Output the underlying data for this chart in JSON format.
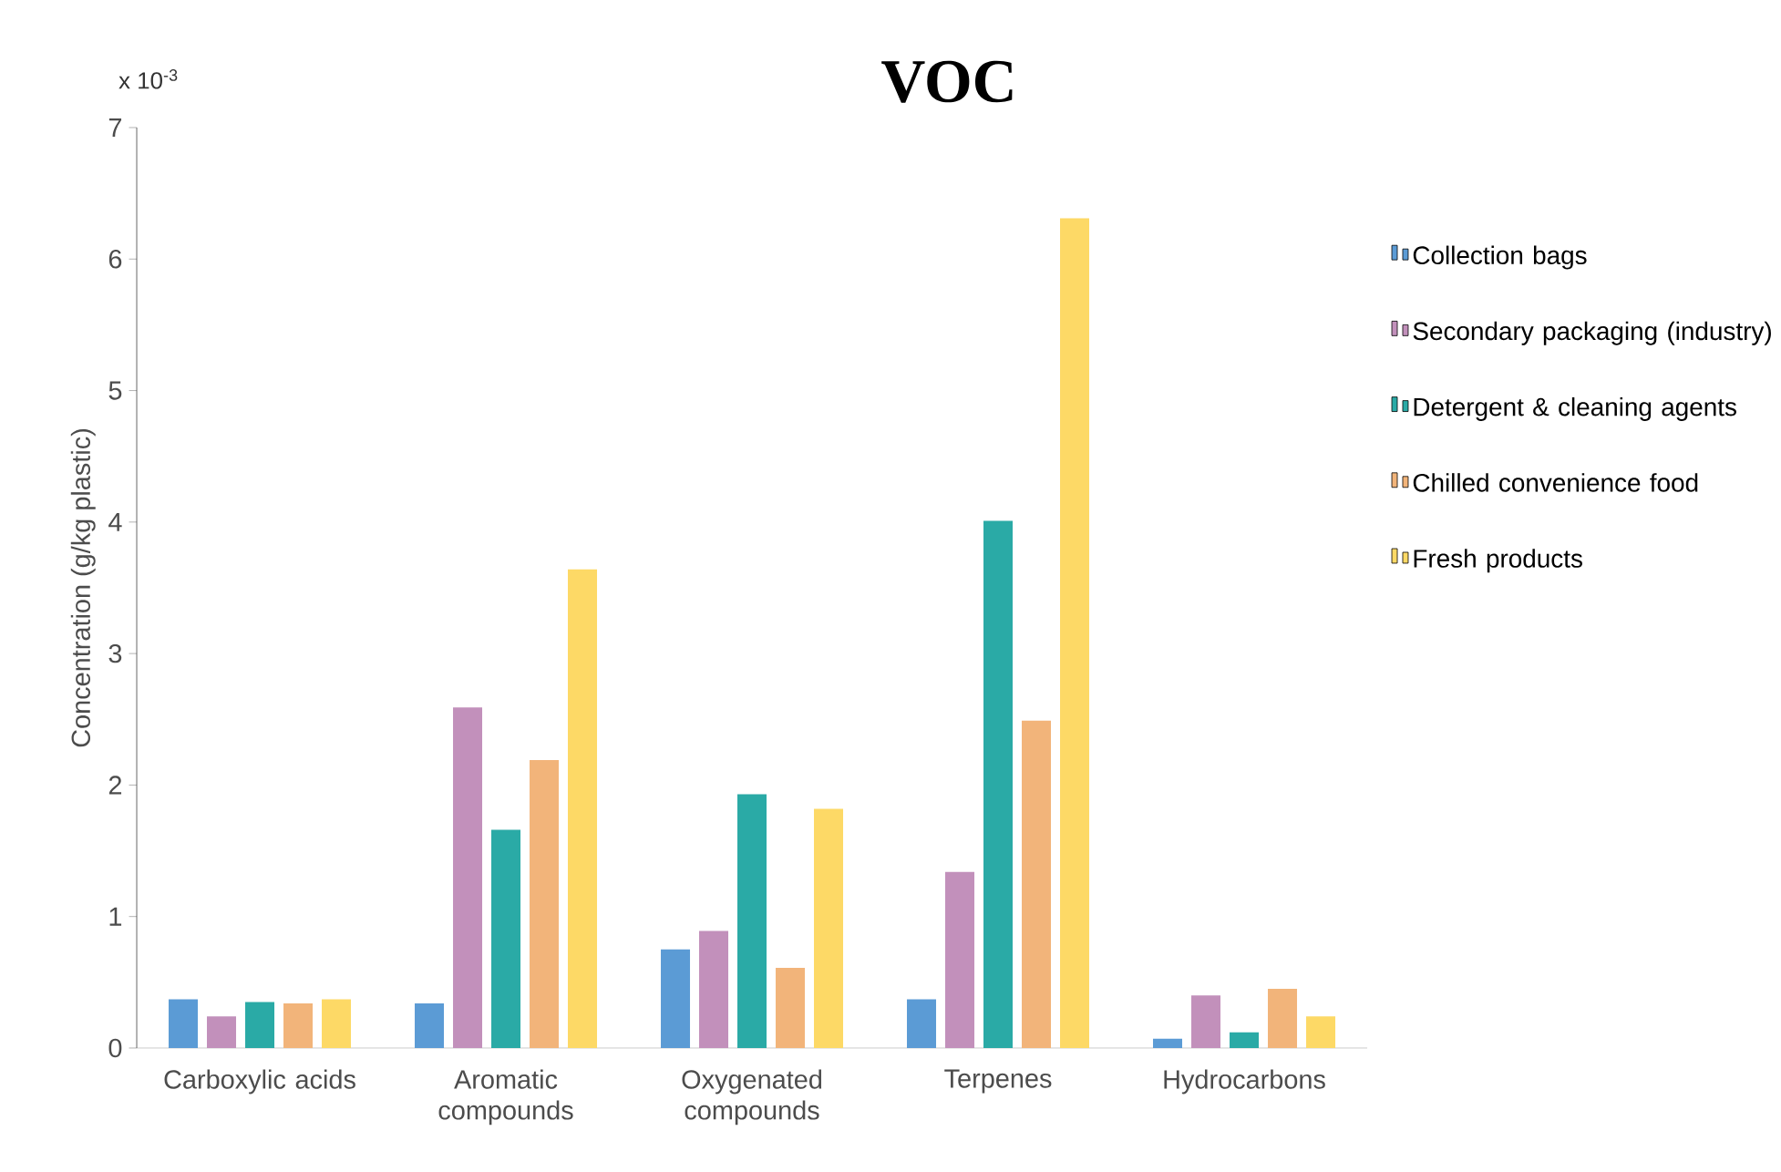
{
  "chart_data": {
    "type": "bar",
    "title": "VOC",
    "ylabel": "Concentration (g/kg plastic)",
    "annotations": [
      "x 10$^{-3}$"
    ],
    "categories": [
      "Carboxylic acids",
      "Aromatic compounds",
      "Oxygenated compounds",
      "Terpenes",
      "Hydrocarbons"
    ],
    "series": [
      {
        "name": "Collection bags",
        "color": "#5b9bd5",
        "values": [
          0.37,
          0.34,
          0.75,
          0.37,
          0.07
        ]
      },
      {
        "name": "Secondary packaging (industry)",
        "color": "#c290bb",
        "values": [
          0.24,
          2.59,
          0.89,
          1.34,
          0.4
        ]
      },
      {
        "name": "Detergent & cleaning agents",
        "color": "#2aaaa6",
        "values": [
          0.35,
          1.66,
          1.93,
          4.01,
          0.12
        ]
      },
      {
        "name": "Chilled convenience food",
        "color": "#f2b47a",
        "values": [
          0.34,
          2.19,
          0.61,
          2.49,
          0.45
        ]
      },
      {
        "name": "Fresh products",
        "color": "#fdd966",
        "values": [
          0.37,
          3.64,
          1.82,
          6.31,
          0.24
        ]
      }
    ],
    "ylim": [
      0,
      7
    ],
    "yticks": [
      0,
      1,
      2,
      3,
      4,
      5,
      6,
      7
    ],
    "legend": "right"
  }
}
